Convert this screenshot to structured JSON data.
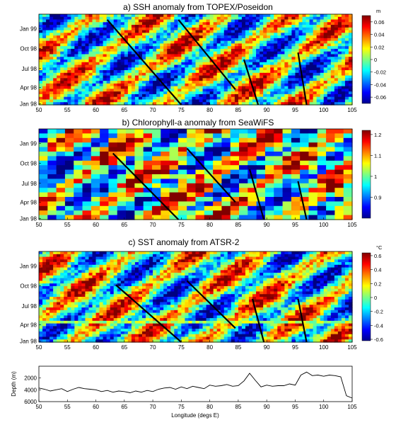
{
  "figure": {
    "panels": [
      {
        "key": "a",
        "title": "a) SSH anomaly from TOPEX/Poseidon",
        "colorbar": {
          "unit": "m",
          "ticks": [
            "0.06",
            "0.04",
            "0.02",
            "0",
            "-0.02",
            "-0.04",
            "-0.06"
          ],
          "values": [
            0.06,
            0.04,
            0.02,
            0,
            -0.02,
            -0.04,
            -0.06
          ],
          "vmin": -0.07,
          "vmax": 0.07
        },
        "yticks": [
          "Jan 99",
          "Oct 98",
          "Jul 98",
          "Apr 98",
          "Jan 98"
        ],
        "xticks": [
          "50",
          "55",
          "60",
          "65",
          "70",
          "75",
          "80",
          "85",
          "90",
          "95",
          "100",
          "105"
        ],
        "rossby_lines": [
          {
            "x1": 62,
            "t1": 12.2,
            "x2": 75,
            "t2": 0
          },
          {
            "x1": 74.5,
            "t1": 12.2,
            "x2": 84.5,
            "t2": 2.2
          },
          {
            "x1": 86,
            "t1": 6.5,
            "x2": 88.5,
            "t2": 0
          },
          {
            "x1": 95.5,
            "t1": 7.5,
            "x2": 97,
            "t2": 0
          }
        ]
      },
      {
        "key": "b",
        "title": "b) Chlorophyll-a anomaly from SeaWiFS",
        "colorbar": {
          "unit": "",
          "ticks": [
            "1.2",
            "1.1",
            "1",
            "0.9"
          ],
          "values": [
            1.2,
            1.1,
            1.0,
            0.9
          ],
          "vmin": 0.8,
          "vmax": 1.22
        },
        "yticks": [
          "Jan 99",
          "Oct 98",
          "Jul 98",
          "Apr 98",
          "Jan 98"
        ],
        "xticks": [
          "50",
          "55",
          "60",
          "65",
          "70",
          "75",
          "80",
          "85",
          "90",
          "95",
          "100",
          "105"
        ],
        "rossby_lines": [
          {
            "x1": 63,
            "t1": 9.5,
            "x2": 74.5,
            "t2": 0
          },
          {
            "x1": 76,
            "t1": 10.2,
            "x2": 84.5,
            "t2": 2.5
          },
          {
            "x1": 87,
            "t1": 7.2,
            "x2": 89.5,
            "t2": 0
          },
          {
            "x1": 95.5,
            "t1": 5.5,
            "x2": 97,
            "t2": 0
          }
        ]
      },
      {
        "key": "c",
        "title": "c) SST anomaly from ATSR-2",
        "colorbar": {
          "unit": "°C",
          "ticks": [
            "0.6",
            "0.4",
            "0.2",
            "0",
            "-0.2",
            "-0.4",
            "-0.6"
          ],
          "values": [
            0.6,
            0.4,
            0.2,
            0,
            -0.2,
            -0.4,
            -0.6
          ],
          "vmin": -0.62,
          "vmax": 0.64
        },
        "yticks": [
          "Jan 99",
          "Oct 98",
          "Jul 98",
          "Apr 98",
          "Jan 98"
        ],
        "xticks": [
          "50",
          "55",
          "60",
          "65",
          "70",
          "75",
          "80",
          "85",
          "90",
          "95",
          "100",
          "105"
        ],
        "rossby_lines": [
          {
            "x1": 63.5,
            "t1": 8.2,
            "x2": 75,
            "t2": 0
          },
          {
            "x1": 76,
            "t1": 8.8,
            "x2": 84.5,
            "t2": 2.0
          },
          {
            "x1": 87.5,
            "t1": 6.2,
            "x2": 89.5,
            "t2": 0
          },
          {
            "x1": 95.5,
            "t1": 6.2,
            "x2": 97,
            "t2": 0
          }
        ]
      }
    ],
    "depth_panel": {
      "ylabel": "Depth (m)",
      "xlabel": "Longitude (degs E)",
      "yticks": [
        "2000",
        "4000",
        "6000"
      ],
      "xticks": [
        "50",
        "55",
        "60",
        "65",
        "70",
        "75",
        "80",
        "85",
        "90",
        "95",
        "100",
        "105"
      ]
    }
  },
  "chart_data": [
    {
      "type": "heatmap",
      "title": "a) SSH anomaly from TOPEX/Poseidon",
      "xlabel": "",
      "ylabel": "",
      "x_range": [
        50,
        105
      ],
      "y_categories": [
        "Jan 98",
        "Apr 98",
        "Jul 98",
        "Oct 98",
        "Jan 99"
      ],
      "value_range": [
        -0.06,
        0.06
      ],
      "colorbar_unit": "m",
      "pattern": "diagonal bands propagating westward; black lines mark propagation",
      "grid": false
    },
    {
      "type": "heatmap",
      "title": "b) Chlorophyll-a anomaly from SeaWiFS",
      "xlabel": "",
      "ylabel": "",
      "x_range": [
        50,
        105
      ],
      "y_categories": [
        "Jan 98",
        "Apr 98",
        "Jul 98",
        "Oct 98",
        "Jan 99"
      ],
      "value_range": [
        0.9,
        1.2
      ],
      "colorbar_unit": "",
      "grid": false
    },
    {
      "type": "heatmap",
      "title": "c) SST anomaly from ATSR-2",
      "xlabel": "",
      "ylabel": "",
      "x_range": [
        50,
        105
      ],
      "y_categories": [
        "Jan 98",
        "Apr 98",
        "Jul 98",
        "Oct 98",
        "Jan 99"
      ],
      "value_range": [
        -0.6,
        0.6
      ],
      "colorbar_unit": "°C",
      "grid": false
    },
    {
      "type": "line",
      "title": "",
      "xlabel": "Longitude (degs E)",
      "ylabel": "Depth (m)",
      "xlim": [
        50,
        105
      ],
      "ylim": [
        6000,
        0
      ],
      "x": [
        50,
        51,
        52,
        53,
        54,
        55,
        56,
        57,
        58,
        59,
        60,
        61,
        62,
        63,
        64,
        65,
        66,
        67,
        68,
        69,
        70,
        71,
        72,
        73,
        74,
        75,
        76,
        77,
        78,
        79,
        80,
        81,
        82,
        83,
        84,
        85,
        86,
        87,
        88,
        89,
        90,
        91,
        92,
        93,
        94,
        95,
        96,
        97,
        98,
        99,
        100,
        101,
        102,
        103,
        104,
        105
      ],
      "y": [
        3700,
        3900,
        4200,
        4000,
        3800,
        4300,
        3900,
        3600,
        3800,
        3900,
        4000,
        4300,
        4100,
        4400,
        4200,
        4300,
        4500,
        4200,
        4400,
        4100,
        4300,
        3900,
        3700,
        3600,
        3900,
        3500,
        3800,
        3400,
        3600,
        3800,
        3200,
        3400,
        3300,
        3100,
        3400,
        3300,
        2500,
        1200,
        2400,
        3500,
        3200,
        3400,
        3300,
        3300,
        3000,
        3200,
        1500,
        1000,
        1600,
        1500,
        1700,
        1500,
        1600,
        1800,
        5000,
        5400
      ],
      "grid": false
    }
  ]
}
